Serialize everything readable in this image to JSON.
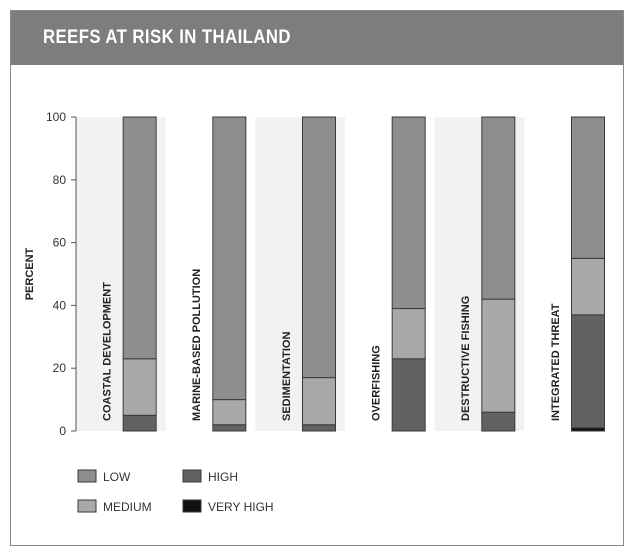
{
  "chart_data": {
    "type": "bar",
    "stacked": true,
    "title": "REEFS AT RISK IN THAILAND",
    "ylabel": "PERCENT",
    "xlabel": "",
    "ylim": [
      0,
      100
    ],
    "yticks": [
      0,
      20,
      40,
      60,
      80,
      100
    ],
    "grid": false,
    "categories": [
      "COASTAL DEVELOPMENT",
      "MARINE-BASED POLLUTION",
      "SEDIMENTATION",
      "OVERFISHING",
      "DESTRUCTIVE FISHING",
      "INTEGRATED THREAT"
    ],
    "series": [
      {
        "name": "LOW",
        "values": [
          77,
          90,
          83,
          61,
          58,
          45
        ]
      },
      {
        "name": "MEDIUM",
        "values": [
          18,
          8,
          15,
          16,
          36,
          18
        ]
      },
      {
        "name": "HIGH",
        "values": [
          5,
          2,
          2,
          23,
          6,
          36
        ]
      },
      {
        "name": "VERY HIGH",
        "values": [
          0,
          0,
          0,
          0,
          0,
          1
        ]
      }
    ],
    "stack_order": [
      "VERY HIGH",
      "HIGH",
      "MEDIUM",
      "LOW"
    ],
    "legend": {
      "placement": "bottom-left",
      "entries": [
        {
          "name": "LOW",
          "color": "#8e8e8e"
        },
        {
          "name": "HIGH",
          "color": "#626262"
        },
        {
          "name": "MEDIUM",
          "color": "#a9a9a9"
        },
        {
          "name": "VERY HIGH",
          "color": "#111111"
        }
      ]
    },
    "colors": {
      "LOW": "#8e8e8e",
      "MEDIUM": "#a9a9a9",
      "HIGH": "#626262",
      "VERY HIGH": "#111111",
      "column_band": "#f2f2f2",
      "header": "#7d7d7d"
    }
  }
}
